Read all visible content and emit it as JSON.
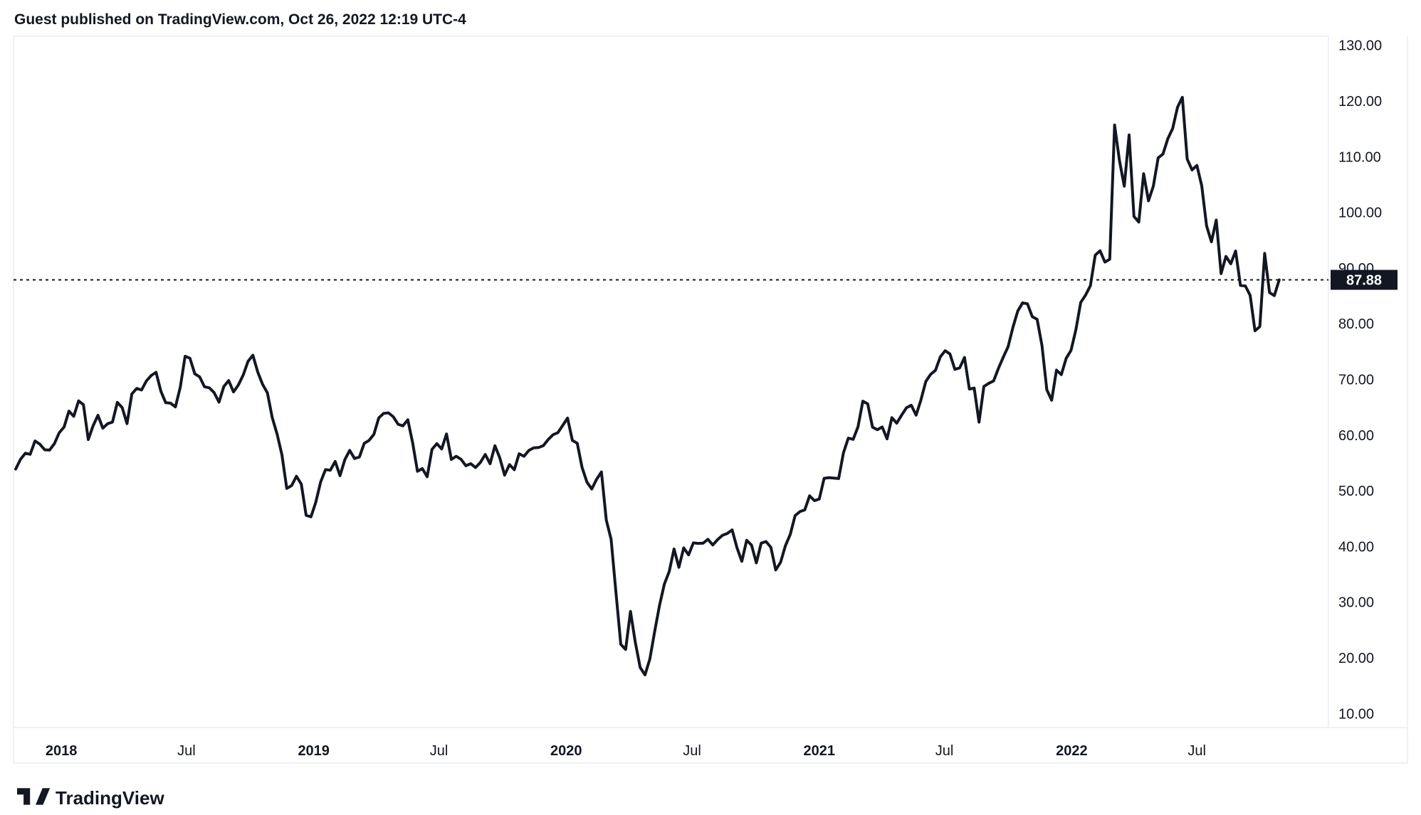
{
  "header": {
    "attribution": "Guest published on TradingView.com, Oct 26, 2022 12:19 UTC-4"
  },
  "footer": {
    "brand": "TradingView"
  },
  "colors": {
    "background": "#ffffff",
    "line": "#131722",
    "axis_text": "#131722",
    "border": "#e0e3eb",
    "price_label_bg": "#131722",
    "price_label_text": "#ffffff"
  },
  "chart_data": {
    "type": "line",
    "title": "",
    "legend": [],
    "grid": "off",
    "y_axis": {
      "side": "right",
      "ticks": [
        130,
        120,
        110,
        100,
        90,
        80,
        70,
        60,
        50,
        40,
        30,
        20,
        10
      ],
      "tick_format": "0.00",
      "range_shown": [
        10.0,
        130.0
      ]
    },
    "x_axis": {
      "ticks": [
        {
          "label": "2018",
          "date": "2018-01-01",
          "major": true
        },
        {
          "label": "Jul",
          "date": "2018-07-01",
          "major": false
        },
        {
          "label": "2019",
          "date": "2019-01-01",
          "major": true
        },
        {
          "label": "Jul",
          "date": "2019-07-01",
          "major": false
        },
        {
          "label": "2020",
          "date": "2020-01-01",
          "major": true
        },
        {
          "label": "Jul",
          "date": "2020-07-01",
          "major": false
        },
        {
          "label": "2021",
          "date": "2021-01-01",
          "major": true
        },
        {
          "label": "Jul",
          "date": "2021-07-01",
          "major": false
        },
        {
          "label": "2022",
          "date": "2022-01-01",
          "major": true
        },
        {
          "label": "Jul",
          "date": "2022-07-01",
          "major": false
        }
      ]
    },
    "price_line": {
      "value": 87.88,
      "label": "87.88",
      "style": "dotted"
    },
    "series": {
      "interval_days": 7,
      "start_date": "2017-10-27",
      "values": [
        53.9,
        55.64,
        56.74,
        56.55,
        58.95,
        58.36,
        57.36,
        57.3,
        58.47,
        60.42,
        61.44,
        64.3,
        63.37,
        66.14,
        65.45,
        59.2,
        61.68,
        63.55,
        61.25,
        62.04,
        62.34,
        65.88,
        64.94,
        62.06,
        67.39,
        68.38,
        68.1,
        69.72,
        70.7,
        71.28,
        67.88,
        65.81,
        65.74,
        65.06,
        68.58,
        74.15,
        73.8,
        71.01,
        70.46,
        68.69,
        68.49,
        67.63,
        65.91,
        68.72,
        69.8,
        67.75,
        68.99,
        70.78,
        73.25,
        74.34,
        71.34,
        69.12,
        67.59,
        63.14,
        60.19,
        56.46,
        50.42,
        50.93,
        52.61,
        51.2,
        45.59,
        45.33,
        47.96,
        51.59,
        53.8,
        53.69,
        55.26,
        52.72,
        55.59,
        57.26,
        55.8,
        56.07,
        58.52,
        59.04,
        60.14,
        63.08,
        63.89,
        64.0,
        63.3,
        61.94,
        61.66,
        62.76,
        58.63,
        53.5,
        53.99,
        52.51,
        57.43,
        58.47,
        57.51,
        60.21,
        55.63,
        56.2,
        55.66,
        54.5,
        54.87,
        54.17,
        55.1,
        56.52,
        54.85,
        58.09,
        55.91,
        52.81,
        54.7,
        53.78,
        56.66,
        56.2,
        57.24,
        57.72,
        57.77,
        58.11,
        59.2,
        60.07,
        60.44,
        61.72,
        63.05,
        59.04,
        58.54,
        54.19,
        51.56,
        50.32,
        52.05,
        53.38,
        44.76,
        41.28,
        31.73,
        22.43,
        21.51,
        28.34,
        22.76,
        18.27,
        16.94,
        19.78,
        24.74,
        29.43,
        33.25,
        35.49,
        39.55,
        36.26,
        39.75,
        38.49,
        40.65,
        40.55,
        40.59,
        41.29,
        40.27,
        41.22,
        42.01,
        42.34,
        42.97,
        39.77,
        37.33,
        41.11,
        40.25,
        37.05,
        40.6,
        40.88,
        39.85,
        35.79,
        37.14,
        40.13,
        42.15,
        45.53,
        46.26,
        46.57,
        49.1,
        48.23,
        48.52,
        52.24,
        52.36,
        52.27,
        52.2,
        56.85,
        59.47,
        59.24,
        61.5,
        66.09,
        65.61,
        61.42,
        60.97,
        61.45,
        59.32,
        63.13,
        62.14,
        63.58,
        64.9,
        65.37,
        63.58,
        66.32,
        69.62,
        70.91,
        71.64,
        74.05,
        75.16,
        74.56,
        71.81,
        72.07,
        73.95,
        68.28,
        68.44,
        62.32,
        68.74,
        69.29,
        69.72,
        71.97,
        73.98,
        75.88,
        79.35,
        82.28,
        83.76,
        83.57,
        81.27,
        80.79,
        76.1,
        68.15,
        66.26,
        71.67,
        70.86,
        73.79,
        75.21,
        78.9,
        83.82,
        85.14,
        86.82,
        92.31,
        93.1,
        91.07,
        91.59,
        115.68,
        109.33,
        104.7,
        113.9,
        99.27,
        98.26,
        106.95,
        102.07,
        104.69,
        109.77,
        110.49,
        113.23,
        115.07,
        118.87,
        120.67,
        109.56,
        107.62,
        108.43,
        104.79,
        97.59,
        94.7,
        98.62,
        89.01,
        92.09,
        90.77,
        93.06,
        86.87,
        86.79,
        85.11,
        78.74,
        79.49,
        92.64,
        85.61,
        85.05,
        87.88
      ]
    }
  }
}
